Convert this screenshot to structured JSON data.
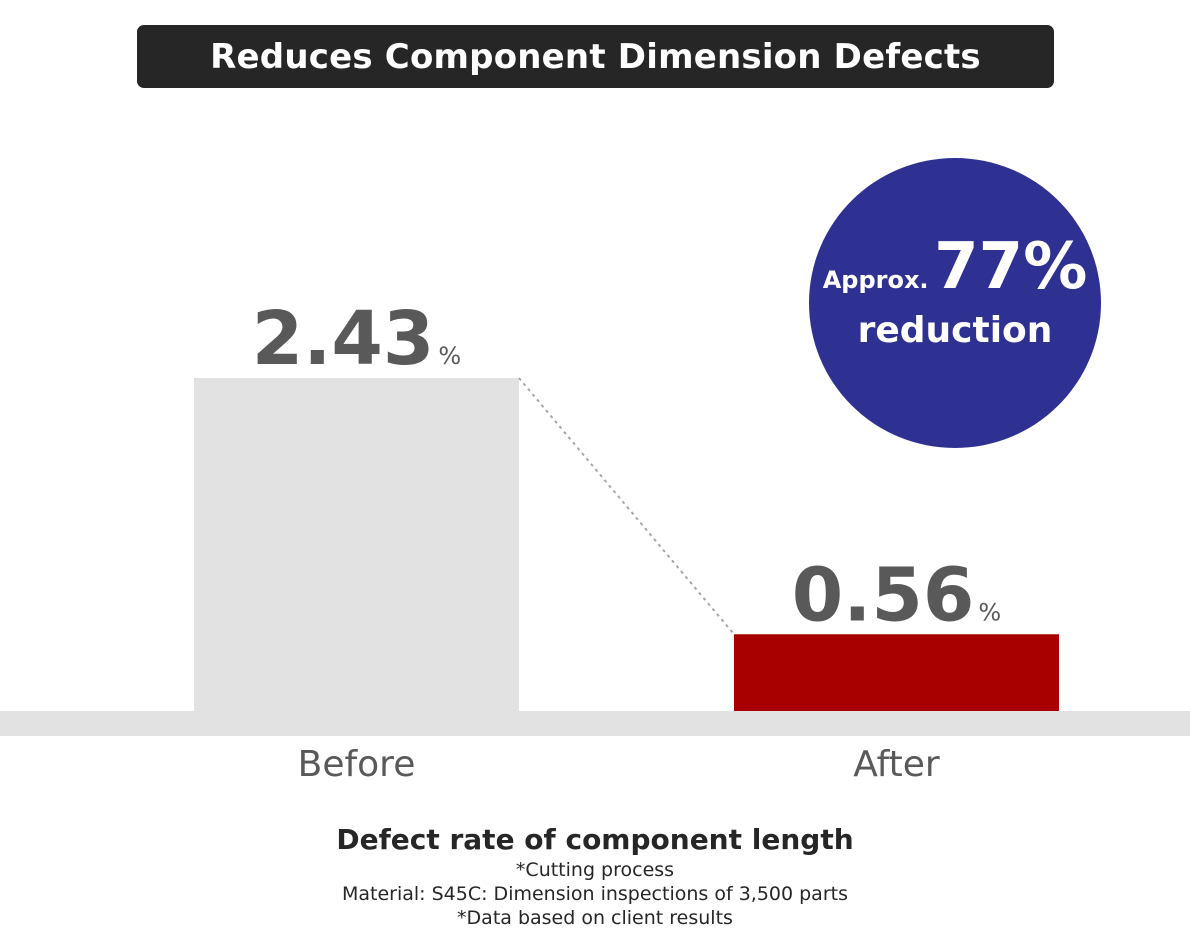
{
  "header": {
    "title": "Reduces Component Dimension Defects"
  },
  "chart_data": {
    "type": "bar",
    "categories": [
      "Before",
      "After"
    ],
    "values": [
      2.43,
      0.56
    ],
    "value_labels": [
      "2.43",
      "0.56"
    ],
    "unit": "%",
    "ylim": [
      0,
      2.43
    ],
    "grid": false,
    "bar_colors": [
      "#e2e2e2",
      "#a80000"
    ],
    "baseline_color": "#e2e2e2",
    "connector": "dotted",
    "xlabel": "",
    "ylabel": ""
  },
  "badge": {
    "prefix": "Approx.",
    "value": "77%",
    "label": "reduction",
    "color": "#2e3192"
  },
  "caption": {
    "title": "Defect rate of component length",
    "notes": [
      "*Cutting process",
      "Material: S45C: Dimension inspections of 3,500 parts",
      "*Data based on client results"
    ]
  }
}
